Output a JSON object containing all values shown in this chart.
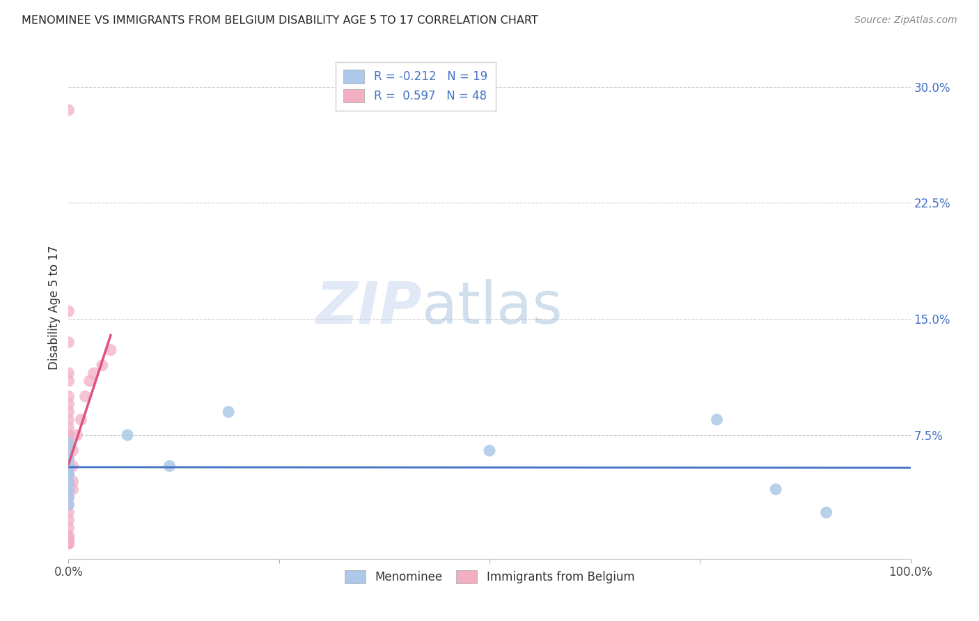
{
  "title": "MENOMINEE VS IMMIGRANTS FROM BELGIUM DISABILITY AGE 5 TO 17 CORRELATION CHART",
  "source": "Source: ZipAtlas.com",
  "ylabel": "Disability Age 5 to 17",
  "xlim": [
    0.0,
    1.0
  ],
  "ylim": [
    -0.005,
    0.32
  ],
  "ytick_positions": [
    0.075,
    0.15,
    0.225,
    0.3
  ],
  "ytick_labels": [
    "7.5%",
    "15.0%",
    "22.5%",
    "30.0%"
  ],
  "xtick_positions": [
    0.0,
    0.25,
    0.5,
    0.75,
    1.0
  ],
  "xticklabels": [
    "0.0%",
    "",
    "",
    "",
    "100.0%"
  ],
  "series1_color": "#adc8e8",
  "series2_color": "#f2afc2",
  "trendline1_color": "#4472c4",
  "trendline2_color": "#e05080",
  "trendline2_dash_color": "#e0a0b8",
  "watermark_zip": "ZIP",
  "watermark_atlas": "atlas",
  "legend1_r": "-0.212",
  "legend1_n": "19",
  "legend2_r": "0.597",
  "legend2_n": "48",
  "menominee_x": [
    0.0,
    0.0,
    0.0,
    0.0,
    0.0,
    0.0,
    0.0,
    0.0,
    0.0,
    0.0,
    0.0,
    0.0,
    0.07,
    0.12,
    0.19,
    0.5,
    0.77,
    0.84,
    0.9
  ],
  "menominee_y": [
    0.07,
    0.065,
    0.06,
    0.055,
    0.055,
    0.05,
    0.05,
    0.045,
    0.04,
    0.04,
    0.035,
    0.03,
    0.075,
    0.055,
    0.09,
    0.065,
    0.085,
    0.04,
    0.025
  ],
  "belgium_x": [
    0.0,
    0.0,
    0.0,
    0.0,
    0.0,
    0.0,
    0.0,
    0.0,
    0.0,
    0.0,
    0.0,
    0.0,
    0.0,
    0.0,
    0.0,
    0.0,
    0.0,
    0.0,
    0.0,
    0.0,
    0.0,
    0.0,
    0.0,
    0.0,
    0.0,
    0.0,
    0.0,
    0.0,
    0.0,
    0.0,
    0.0,
    0.0,
    0.0,
    0.0,
    0.0,
    0.0,
    0.0,
    0.005,
    0.005,
    0.005,
    0.005,
    0.01,
    0.015,
    0.02,
    0.025,
    0.03,
    0.04,
    0.05
  ],
  "belgium_y": [
    0.285,
    0.155,
    0.135,
    0.115,
    0.11,
    0.1,
    0.095,
    0.09,
    0.085,
    0.08,
    0.075,
    0.075,
    0.07,
    0.065,
    0.06,
    0.055,
    0.055,
    0.05,
    0.05,
    0.045,
    0.04,
    0.035,
    0.035,
    0.03,
    0.025,
    0.02,
    0.015,
    0.01,
    0.008,
    0.007,
    0.006,
    0.006,
    0.005,
    0.005,
    0.005,
    0.005,
    0.005,
    0.065,
    0.055,
    0.045,
    0.04,
    0.075,
    0.085,
    0.1,
    0.11,
    0.115,
    0.12,
    0.13
  ]
}
